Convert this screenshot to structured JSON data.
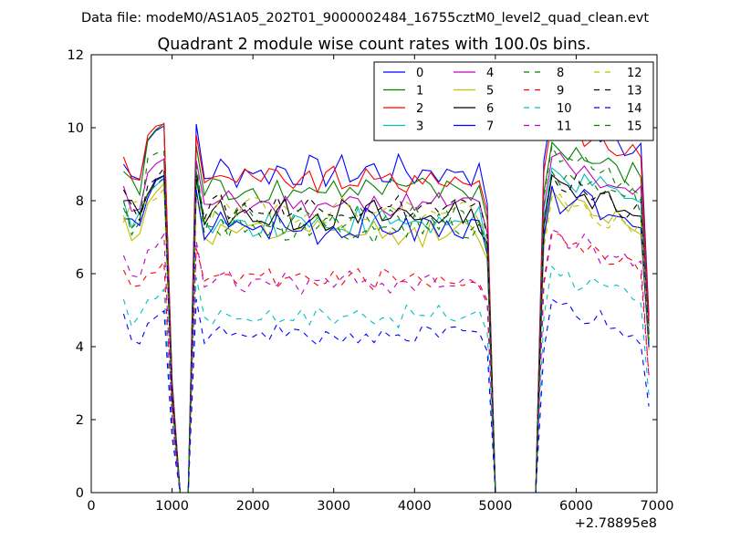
{
  "chart_data": {
    "type": "line",
    "suptitle": "Data file: modeM0/AS1A05_202T01_9000002484_16755cztM0_level2_quad_clean.evt",
    "title": "Quadrant 2 module wise count rates with 100.0s bins.",
    "xlabel": "",
    "ylabel": "",
    "x_offset_label": "+2.78895e8",
    "xlim": [
      0,
      7000
    ],
    "ylim": [
      0,
      12
    ],
    "xticks": [
      0,
      1000,
      2000,
      3000,
      4000,
      5000,
      6000,
      7000
    ],
    "yticks": [
      0,
      2,
      4,
      6,
      8,
      10,
      12
    ],
    "xtick_labels": [
      "0",
      "1000",
      "2000",
      "3000",
      "4000",
      "5000",
      "6000",
      "7000"
    ],
    "ytick_labels": [
      "0",
      "2",
      "4",
      "6",
      "8",
      "10",
      "12"
    ],
    "grid": false,
    "legend_position": "top-right",
    "legend_columns": 4,
    "x": [
      400,
      500,
      600,
      700,
      800,
      900,
      1000,
      1100,
      1200,
      1300,
      1400,
      1500,
      1600,
      1700,
      1800,
      1900,
      2000,
      2100,
      2200,
      2300,
      2400,
      2500,
      2600,
      2700,
      2800,
      2900,
      3000,
      3100,
      3200,
      3300,
      3400,
      3500,
      3600,
      3700,
      3800,
      3900,
      4000,
      4100,
      4200,
      4300,
      4400,
      4500,
      4600,
      4700,
      4800,
      4900,
      5000,
      5100,
      5200,
      5300,
      5400,
      5500,
      5600,
      5700,
      5800,
      5900,
      6000,
      6100,
      6200,
      6300,
      6400,
      6500,
      6600,
      6700,
      6800,
      6900
    ],
    "series": [
      {
        "name": "0",
        "color": "#0000ff",
        "dashed": false,
        "level": 8.8,
        "amp": 0.35,
        "first": 9.0,
        "peak": 10.1,
        "post": 9.6,
        "recover": 10.3
      },
      {
        "name": "1",
        "color": "#008000",
        "dashed": false,
        "level": 8.3,
        "amp": 0.3,
        "first": 8.8,
        "peak": 10.1,
        "post": 9.0,
        "recover": 9.4
      },
      {
        "name": "2",
        "color": "#ff0000",
        "dashed": false,
        "level": 8.55,
        "amp": 0.3,
        "first": 9.2,
        "peak": 10.2,
        "post": 9.3,
        "recover": 10.0
      },
      {
        "name": "3",
        "color": "#00bfbf",
        "dashed": false,
        "level": 7.4,
        "amp": 0.35,
        "first": 8.0,
        "peak": 8.6,
        "post": 8.3,
        "recover": 8.7
      },
      {
        "name": "4",
        "color": "#bf00bf",
        "dashed": false,
        "level": 7.9,
        "amp": 0.3,
        "first": 8.4,
        "peak": 9.2,
        "post": 8.6,
        "recover": 9.0
      },
      {
        "name": "5",
        "color": "#bfbf00",
        "dashed": false,
        "level": 7.1,
        "amp": 0.3,
        "first": 7.6,
        "peak": 8.4,
        "post": 7.7,
        "recover": 8.1
      },
      {
        "name": "6",
        "color": "#000000",
        "dashed": false,
        "level": 7.6,
        "amp": 0.35,
        "first": 8.0,
        "peak": 8.7,
        "post": 8.1,
        "recover": 8.5
      },
      {
        "name": "7",
        "color": "#0000ff",
        "dashed": false,
        "level": 7.25,
        "amp": 0.4,
        "first": 7.5,
        "peak": 8.6,
        "post": 7.8,
        "recover": 8.2
      },
      {
        "name": "8",
        "color": "#008000",
        "dashed": true,
        "level": 7.3,
        "amp": 0.35,
        "first": 7.8,
        "peak": 8.7,
        "post": 8.2,
        "recover": 8.6
      },
      {
        "name": "9",
        "color": "#ff0000",
        "dashed": true,
        "level": 5.85,
        "amp": 0.25,
        "first": 6.1,
        "peak": 6.3,
        "post": 6.2,
        "recover": 6.9
      },
      {
        "name": "10",
        "color": "#00bfbf",
        "dashed": true,
        "level": 4.85,
        "amp": 0.25,
        "first": 5.3,
        "peak": 5.6,
        "post": 5.4,
        "recover": 6.0
      },
      {
        "name": "11",
        "color": "#bf00bf",
        "dashed": true,
        "level": 5.75,
        "amp": 0.25,
        "first": 6.5,
        "peak": 7.0,
        "post": 6.4,
        "recover": 7.0
      },
      {
        "name": "12",
        "color": "#bfbf00",
        "dashed": true,
        "level": 7.75,
        "amp": 0.3,
        "first": 7.4,
        "peak": 8.3,
        "post": 7.6,
        "recover": 7.9
      },
      {
        "name": "13",
        "color": "#000000",
        "dashed": true,
        "level": 7.8,
        "amp": 0.3,
        "first": 8.3,
        "peak": 8.8,
        "post": 8.3,
        "recover": 8.5
      },
      {
        "name": "14",
        "color": "#0000ff",
        "dashed": true,
        "level": 4.3,
        "amp": 0.25,
        "first": 4.9,
        "peak": 5.0,
        "post": 4.8,
        "recover": 5.1
      },
      {
        "name": "15",
        "color": "#008000",
        "dashed": true,
        "level": 7.5,
        "amp": 0.35,
        "first": 8.0,
        "peak": 9.5,
        "post": 8.5,
        "recover": 9.3
      }
    ]
  }
}
